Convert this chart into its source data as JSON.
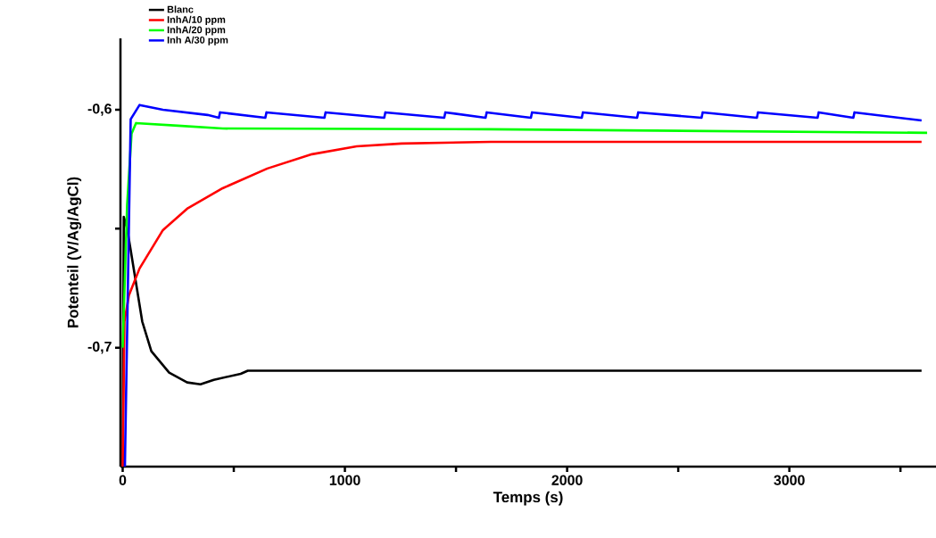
{
  "chart_data": {
    "type": "line",
    "xlabel": "Temps (s)",
    "ylabel": "Potenteil (V/Ag/AgCl)",
    "xlim": [
      -10,
      3660
    ],
    "ylim": [
      -0.75,
      -0.57
    ],
    "xticks": [
      0,
      {
        "value": 500,
        "label": null
      },
      1000,
      {
        "value": 1500,
        "label": null
      },
      2000,
      {
        "value": 2500,
        "label": null
      },
      3000,
      {
        "value": 3500,
        "label": null
      }
    ],
    "yticks": [
      {
        "value": -0.7,
        "label": "-0,7"
      },
      {
        "value": -0.65,
        "label": null
      },
      {
        "value": -0.6,
        "label": "-0,6"
      }
    ],
    "legend": "top left",
    "series": [
      {
        "name": "Blanc",
        "color": "#000000",
        "x": [
          0,
          5,
          20,
          36,
          88,
          129,
          209,
          290,
          350,
          410,
          531,
          563,
          1000,
          2000,
          3000,
          3595
        ],
        "values": [
          -0.75,
          -0.645,
          -0.65,
          -0.659,
          -0.689,
          -0.7015,
          -0.7105,
          -0.7146,
          -0.7154,
          -0.7135,
          -0.711,
          -0.7097,
          -0.7097,
          -0.7097,
          -0.7097,
          -0.7097
        ]
      },
      {
        "name": "InhA/10 ppm",
        "color": "#ff0000",
        "x": [
          0,
          8,
          28,
          76,
          181,
          290,
          450,
          651,
          852,
          1053,
          1255,
          1657,
          2500,
          3595
        ],
        "values": [
          -0.75,
          -0.689,
          -0.678,
          -0.6667,
          -0.6506,
          -0.6416,
          -0.633,
          -0.6247,
          -0.6187,
          -0.6154,
          -0.6142,
          -0.6135,
          -0.6135,
          -0.6135
        ]
      },
      {
        "name": "InhA/20 ppm",
        "color": "#00ff00",
        "x": [
          0,
          20,
          40,
          60,
          249,
          450,
          1650,
          3620
        ],
        "values": [
          -0.7,
          -0.64,
          -0.61,
          -0.6056,
          -0.6067,
          -0.6079,
          -0.6082,
          -0.6097
        ]
      },
      {
        "name": "Inh A/30 ppm",
        "color": "#0000ff",
        "x": [
          10,
          36,
          76,
          181,
          382,
          433,
          438,
          642,
          647,
          908,
          913,
          1177,
          1182,
          1447,
          1452,
          1633,
          1638,
          1837,
          1842,
          2066,
          2071,
          2315,
          2320,
          2605,
          2610,
          2854,
          2859,
          3127,
          3132,
          3288,
          3293,
          3595
        ],
        "values": [
          -0.75,
          -0.604,
          -0.598,
          -0.6,
          -0.6022,
          -0.6034,
          -0.6011,
          -0.6034,
          -0.6011,
          -0.6034,
          -0.6011,
          -0.6034,
          -0.6011,
          -0.6034,
          -0.6011,
          -0.6034,
          -0.6011,
          -0.6034,
          -0.6011,
          -0.6034,
          -0.6011,
          -0.6034,
          -0.6011,
          -0.6034,
          -0.6011,
          -0.6034,
          -0.6011,
          -0.6034,
          -0.6011,
          -0.6034,
          -0.6011,
          -0.6045
        ]
      }
    ]
  }
}
